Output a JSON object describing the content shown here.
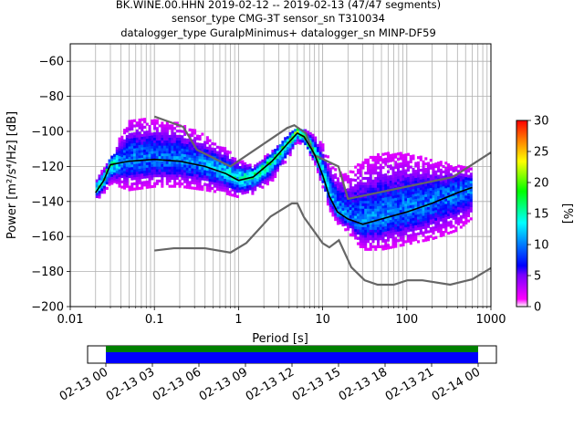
{
  "chart_data": {
    "type": "heatmap",
    "title_lines": [
      "BK.WINE.00.HHN   2019-02-12 -- 2019-02-13  (47/47 segments)",
      "sensor_type CMG-3T sensor_sn T310034",
      "datalogger_type GuralpMinimus+ datalogger_sn MINP-DF59"
    ],
    "xlabel": "Period [s]",
    "ylabel": "Power [m²/s⁴/Hz] [dB]",
    "xscale": "log",
    "xlim": [
      0.01,
      1000
    ],
    "ylim": [
      -200,
      -50
    ],
    "x_ticks": [
      0.01,
      0.1,
      1,
      10,
      100,
      1000
    ],
    "x_tick_labels": [
      "0.01",
      "0.1",
      "1",
      "10",
      "100",
      "1000"
    ],
    "y_ticks": [
      -200,
      -180,
      -160,
      -140,
      -120,
      -100,
      -80,
      -60
    ],
    "y_tick_labels": [
      "−200",
      "−180",
      "−160",
      "−140",
      "−120",
      "−100",
      "−80",
      "−60"
    ],
    "grid": true,
    "colorbar": {
      "label": "[%]",
      "range": [
        0,
        30
      ],
      "ticks": [
        0,
        5,
        10,
        15,
        20,
        25,
        30
      ],
      "tick_labels": [
        "0",
        "5",
        "10",
        "15",
        "20",
        "25",
        "30"
      ]
    },
    "nhnm": {
      "name": "NHNM",
      "x": [
        0.1,
        0.22,
        0.32,
        0.8,
        3.8,
        4.6,
        6.3,
        7.9,
        15.4,
        20,
        354.8,
        1000
      ],
      "y": [
        -91.5,
        -97.4,
        -110.5,
        -120,
        -98,
        -96.5,
        -101,
        -113.5,
        -120,
        -138.5,
        -126,
        -112
      ]
    },
    "nlnm": {
      "name": "NLNM",
      "x": [
        0.1,
        0.17,
        0.4,
        0.8,
        1.24,
        2.4,
        4.3,
        5,
        6,
        10,
        12,
        15.6,
        21.9,
        31.6,
        45,
        70,
        101,
        154,
        328,
        600,
        1000
      ],
      "y": [
        -168,
        -166.7,
        -166.7,
        -169.2,
        -163.7,
        -148.6,
        -141.1,
        -141.1,
        -149,
        -163.8,
        -166.2,
        -162.1,
        -177.5,
        -185,
        -187.5,
        -187.5,
        -185,
        -185,
        -187.5,
        -184.4,
        -178
      ]
    },
    "mean_curve": {
      "name": "mean",
      "x": [
        0.02,
        0.025,
        0.03,
        0.05,
        0.1,
        0.2,
        0.4,
        0.7,
        1,
        1.5,
        2.5,
        4,
        5,
        6,
        8,
        10,
        12,
        15,
        20,
        30,
        50,
        100,
        200,
        400,
        600
      ],
      "y": [
        -135,
        -128,
        -119,
        -117,
        -116,
        -117,
        -120,
        -124,
        -128,
        -126,
        -117,
        -106,
        -101,
        -103,
        -113,
        -125,
        -137,
        -146,
        -150,
        -153,
        -150,
        -146,
        -141,
        -135,
        -132
      ]
    },
    "heatmap_envelope": {
      "x": [
        0.02,
        0.025,
        0.03,
        0.05,
        0.1,
        0.2,
        0.4,
        0.7,
        1,
        1.5,
        2.5,
        4,
        5,
        6,
        8,
        10,
        12,
        15,
        20,
        30,
        50,
        100,
        200,
        400,
        600
      ],
      "upper": [
        -128,
        -122,
        -116,
        -93,
        -94,
        -96,
        -103,
        -110,
        -117,
        -120,
        -112,
        -102,
        -99,
        -99,
        -103,
        -108,
        -117,
        -124,
        -125,
        -117,
        -113,
        -113,
        -117,
        -120,
        -122
      ],
      "lower": [
        -140,
        -136,
        -130,
        -134,
        -132,
        -132,
        -134,
        -136,
        -138,
        -136,
        -129,
        -115,
        -107,
        -108,
        -118,
        -132,
        -145,
        -153,
        -158,
        -168,
        -168,
        -165,
        -162,
        -157,
        -150
      ]
    },
    "time_axis": {
      "tick_labels": [
        "02-13 00",
        "02-13 03",
        "02-13 06",
        "02-13 09",
        "02-13 12",
        "02-13 15",
        "02-13 18",
        "02-13 21",
        "02-14 00"
      ],
      "segment_colors": [
        "#008000",
        "#0000ff"
      ]
    }
  }
}
